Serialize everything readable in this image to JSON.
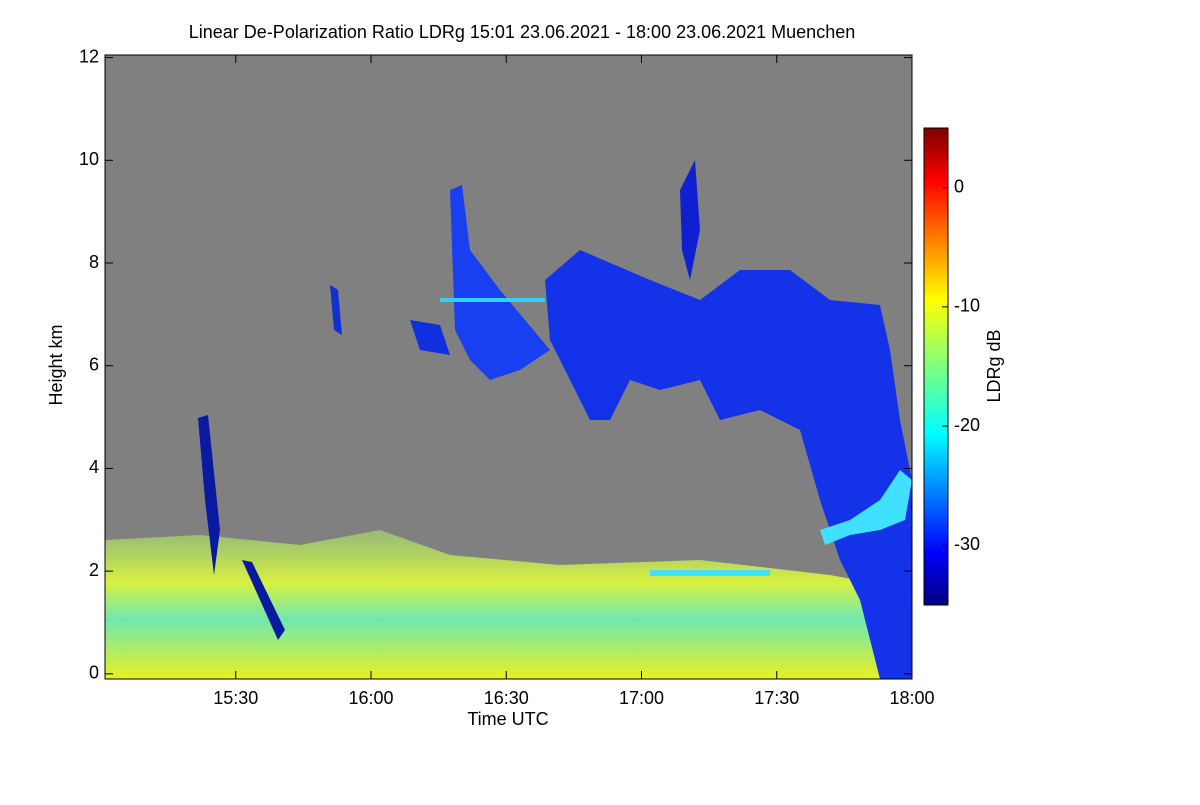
{
  "chart_data": {
    "type": "heatmap",
    "title": "Linear De-Polarization Ratio LDRg   15:01 23.06.2021 - 18:00 23.06.2021 Muenchen",
    "x_label": "Time UTC",
    "y_label": "Height km",
    "xlim": [
      901,
      1080
    ],
    "xticks": [
      {
        "value": 930,
        "label": "15:30"
      },
      {
        "value": 960,
        "label": "16:00"
      },
      {
        "value": 990,
        "label": "16:30"
      },
      {
        "value": 1020,
        "label": "17:00"
      },
      {
        "value": 1050,
        "label": "17:30"
      },
      {
        "value": 1080,
        "label": "18:00"
      }
    ],
    "ylim": [
      -0.1,
      12.05
    ],
    "yticks": [
      0,
      2,
      4,
      6,
      8,
      10,
      12
    ],
    "colorbar": {
      "label": "LDRg dB",
      "lim": [
        -35,
        5
      ],
      "ticks": [
        0,
        -10,
        -20,
        -30
      ],
      "colormap": "jet"
    }
  }
}
